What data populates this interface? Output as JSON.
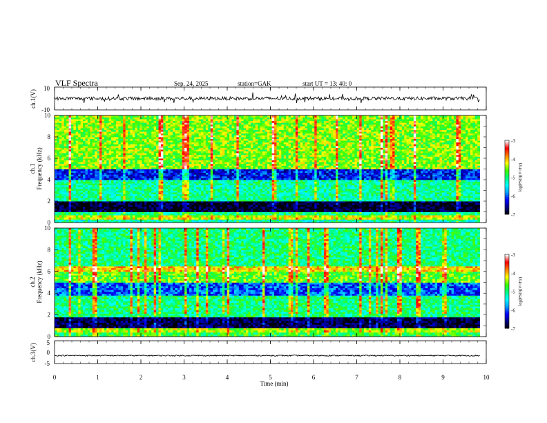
{
  "header": {
    "title": "VLF Spectra",
    "date": "Sep. 24, 2025",
    "station": "station=GAK",
    "start_ut": "start  UT  =   13: 40: 0"
  },
  "chart_data": [
    {
      "type": "line",
      "name": "ch1-waveform",
      "ylabel": "ch.1(V)",
      "ylim": [
        -10,
        10
      ],
      "y_ticks": [
        "10",
        "-10"
      ],
      "mean": 0,
      "noise_amplitude": 1.5,
      "spike_amplitude": 4
    },
    {
      "type": "heatmap",
      "name": "ch1-spectrogram",
      "ylabel": "ch.1\nFrequency  (kHz)",
      "ylim": [
        0,
        10
      ],
      "y_ticks": [
        "0",
        "2",
        "4",
        "6",
        "8",
        "10"
      ],
      "colorbar": {
        "label": "log(PSD)(V²/Hz)",
        "range": [
          -7,
          -3
        ],
        "ticks": [
          "-3",
          "-4",
          "-5",
          "-6",
          "-7"
        ]
      },
      "bands_khz_logpsd": [
        {
          "from": 0,
          "to": 0.3,
          "level": -5.2
        },
        {
          "from": 0.3,
          "to": 0.7,
          "level": -4.3
        },
        {
          "from": 0.7,
          "to": 1.0,
          "level": -5.0
        },
        {
          "from": 1.0,
          "to": 2.0,
          "level": -6.9
        },
        {
          "from": 2.0,
          "to": 4.0,
          "level": -5.1
        },
        {
          "from": 4.0,
          "to": 5.0,
          "level": -6.2
        },
        {
          "from": 5.0,
          "to": 10.0,
          "level": -4.5
        }
      ]
    },
    {
      "type": "heatmap",
      "name": "ch2-spectrogram",
      "ylabel": "ch.2\nFrequency  (kHz)",
      "ylim": [
        0,
        10
      ],
      "y_ticks": [
        "0",
        "2",
        "4",
        "6",
        "8",
        "10"
      ],
      "colorbar": {
        "label": "log(PSD)(V²/Hz)",
        "range": [
          -7,
          -3
        ],
        "ticks": [
          "-3",
          "-4",
          "-5",
          "-6",
          "-7"
        ]
      },
      "bands_khz_logpsd": [
        {
          "from": 0,
          "to": 0.4,
          "level": -4.8
        },
        {
          "from": 0.4,
          "to": 0.8,
          "level": -4.4
        },
        {
          "from": 0.8,
          "to": 1.8,
          "level": -6.8
        },
        {
          "from": 1.8,
          "to": 3.8,
          "level": -5.0
        },
        {
          "from": 3.8,
          "to": 5.0,
          "level": -6.0
        },
        {
          "from": 5.0,
          "to": 6.0,
          "level": -4.6
        },
        {
          "from": 6.0,
          "to": 6.5,
          "level": -4.1
        },
        {
          "from": 6.5,
          "to": 10.0,
          "level": -5.0
        }
      ]
    },
    {
      "type": "line",
      "name": "ch3-waveform",
      "ylabel": "ch.3(V)",
      "ylim": [
        -5,
        5
      ],
      "y_ticks": [
        "5",
        "0",
        "-5"
      ],
      "mean": -1.5,
      "noise_amplitude": 0.25
    }
  ],
  "x_axis": {
    "label": "Time  (min)",
    "range": [
      0,
      10
    ],
    "data_end": 9.85,
    "ticks": [
      "0",
      "1",
      "2",
      "3",
      "4",
      "5",
      "6",
      "7",
      "8",
      "9",
      "10"
    ]
  },
  "colors": {
    "colormap": [
      "#000000",
      "#000080",
      "#0000ff",
      "#00a0ff",
      "#00ffff",
      "#00ff80",
      "#40ff00",
      "#ffff00",
      "#ff8000",
      "#ff0000",
      "#ffffff"
    ],
    "line": "#000000"
  }
}
